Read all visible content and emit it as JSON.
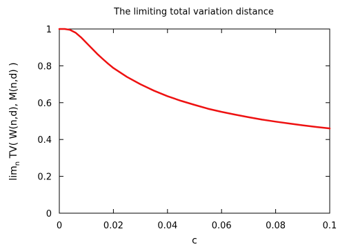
{
  "chart_data": {
    "type": "line",
    "title": "The limiting total variation distance",
    "xlabel": "c",
    "ylabel": {
      "prefix": "lim",
      "subscript": "n",
      "suffix": " TV( W(n,d), M(n,d) )"
    },
    "xlim": [
      0,
      0.1
    ],
    "ylim": [
      0,
      1
    ],
    "xticks": [
      0,
      0.02,
      0.04,
      0.06,
      0.08,
      0.1
    ],
    "xtick_labels": [
      "0",
      "0.02",
      "0.04",
      "0.06",
      "0.08",
      "0.1"
    ],
    "yticks": [
      0,
      0.2,
      0.4,
      0.6,
      0.8,
      1
    ],
    "ytick_labels": [
      "0",
      "0.2",
      "0.4",
      "0.6",
      "0.8",
      "1"
    ],
    "grid": false,
    "series": [
      {
        "color": "#ee1111",
        "x": [
          0,
          0.002,
          0.004,
          0.006,
          0.008,
          0.01,
          0.012,
          0.014,
          0.016,
          0.018,
          0.02,
          0.025,
          0.03,
          0.035,
          0.04,
          0.045,
          0.05,
          0.055,
          0.06,
          0.065,
          0.07,
          0.075,
          0.08,
          0.085,
          0.09,
          0.095,
          0.1
        ],
        "y": [
          1.0,
          1.0,
          0.995,
          0.98,
          0.955,
          0.925,
          0.895,
          0.865,
          0.838,
          0.812,
          0.788,
          0.74,
          0.7,
          0.665,
          0.635,
          0.61,
          0.588,
          0.567,
          0.55,
          0.535,
          0.521,
          0.508,
          0.497,
          0.487,
          0.477,
          0.468,
          0.46
        ]
      }
    ]
  }
}
